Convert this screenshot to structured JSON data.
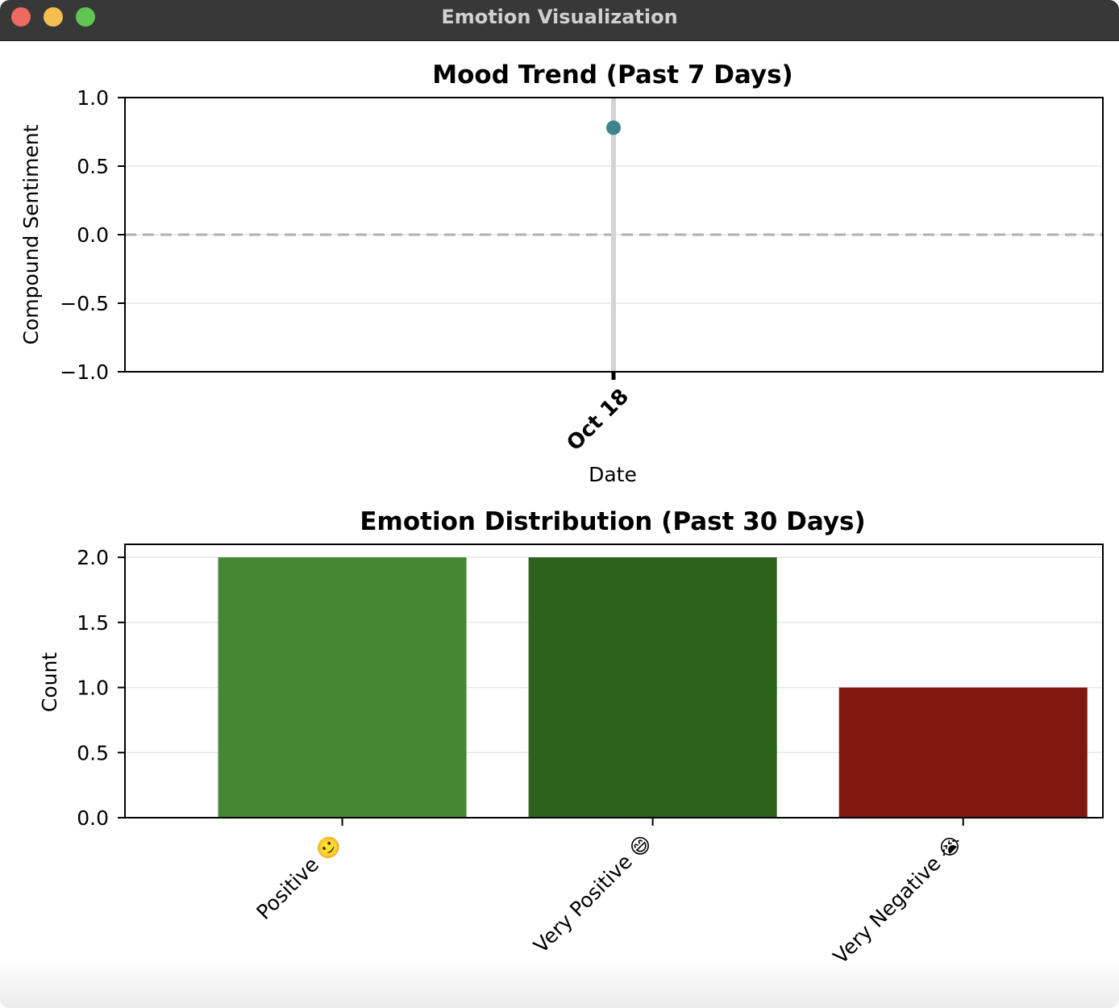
{
  "window": {
    "title": "Emotion Visualization",
    "controls": {
      "close_color": "#ed6a5e",
      "minimize_color": "#f4bf4f",
      "maximize_color": "#61c554"
    }
  },
  "chart_data": [
    {
      "type": "line",
      "title": "Mood Trend (Past 7 Days)",
      "xlabel": "Date",
      "ylabel": "Compound Sentiment",
      "x": [
        "Oct 18"
      ],
      "series": [
        {
          "values": [
            0.78
          ],
          "color": "#3e848a"
        }
      ],
      "ylim": [
        -1.0,
        1.0
      ],
      "yticks": [
        "1.0",
        "0.5",
        "0.0",
        "−0.5",
        "−1.0"
      ],
      "reference_line": {
        "y": 0.0,
        "style": "dashed",
        "color": "#b0b0b0"
      },
      "grid": true
    },
    {
      "type": "bar",
      "title": "Emotion Distribution (Past 30 Days)",
      "xlabel": "",
      "ylabel": "Count",
      "categories": [
        "Positive 🙂",
        "Very Positive 😄",
        "Very Negative 😭"
      ],
      "values": [
        2,
        2,
        1
      ],
      "colors": [
        "#458733",
        "#2c621b",
        "#801810"
      ],
      "ylim": [
        0,
        2.1
      ],
      "yticks": [
        "0.0",
        "0.5",
        "1.0",
        "1.5",
        "2.0"
      ],
      "grid": true
    }
  ]
}
